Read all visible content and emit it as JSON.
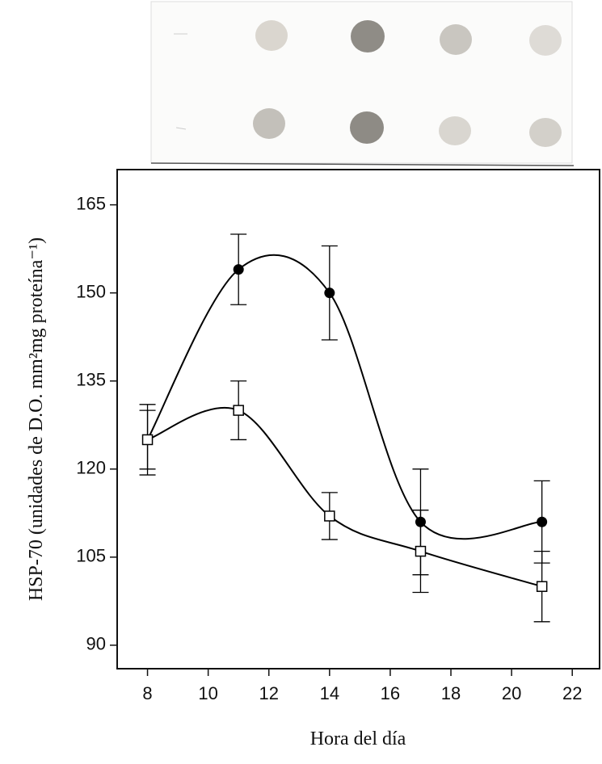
{
  "chart_data": {
    "type": "line",
    "x_label": "Hora del día",
    "y_label": "HSP-70 (unidades de D.O. mm²mg proteína⁻¹)",
    "x": [
      8,
      11,
      14,
      17,
      21
    ],
    "series": [
      {
        "color": "#000000",
        "marker": "filled-circle",
        "values": [
          125,
          154,
          150,
          111,
          111
        ],
        "errors": [
          6,
          6,
          8,
          9,
          7
        ]
      },
      {
        "color": "#000000",
        "marker": "open-square",
        "values": [
          125,
          130,
          112,
          106,
          100
        ],
        "errors": [
          5,
          5,
          4,
          7,
          6
        ]
      }
    ],
    "xlim": [
      7,
      22.9
    ],
    "xticks": [
      8,
      10,
      12,
      14,
      16,
      18,
      20,
      22
    ],
    "ylim": [
      86,
      171
    ],
    "yticks": [
      90,
      105,
      120,
      135,
      150,
      165
    ],
    "smooth": true
  }
}
